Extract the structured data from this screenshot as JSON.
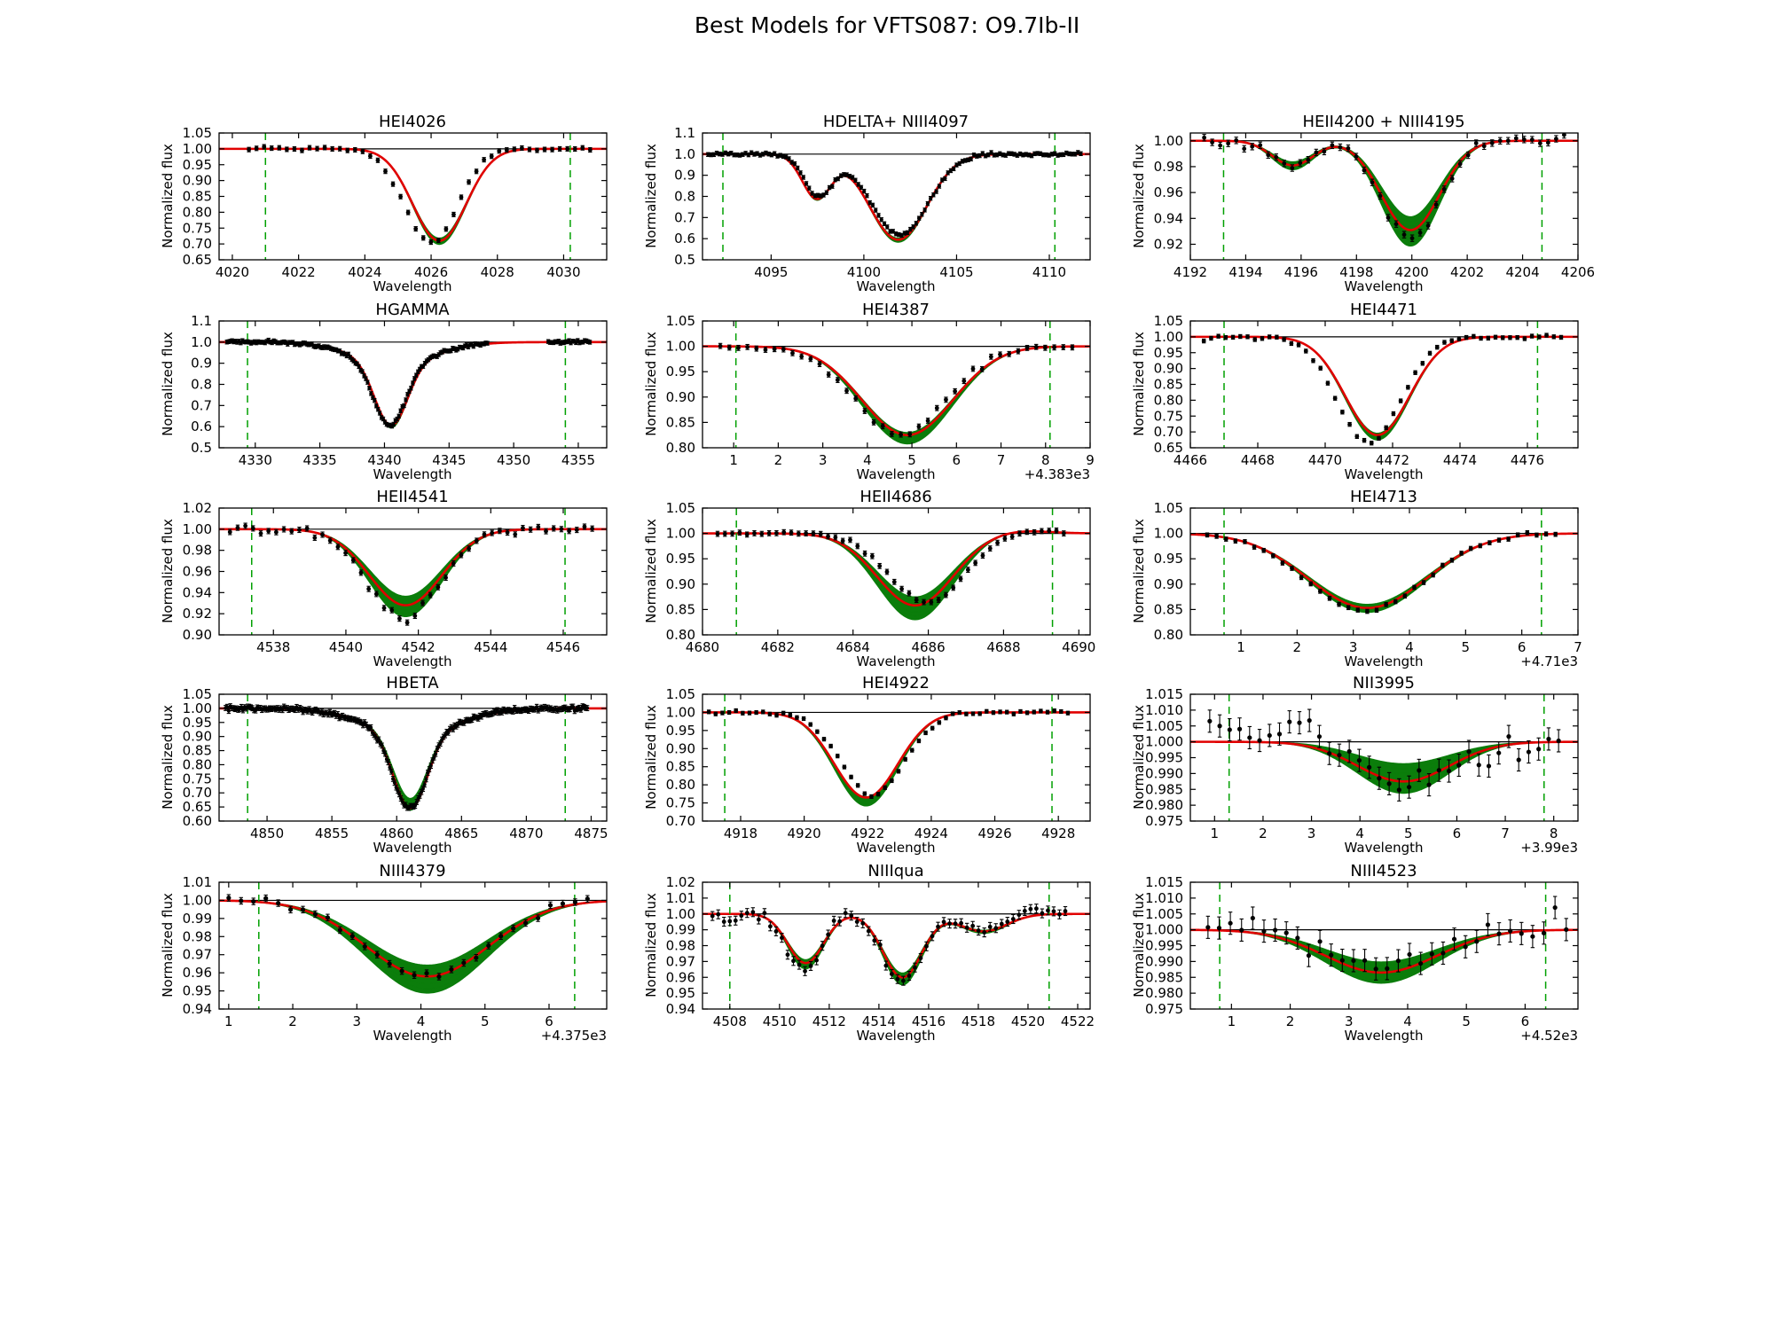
{
  "title": "Best Models for VFTS087: O9.7Ib-II",
  "style": {
    "background": "#ffffff",
    "data_black": "#000000",
    "model_green": "#0b7d0b",
    "best_fit_red": "#e10000",
    "fit_region_green": "#00a000",
    "continuum_black": "#000000"
  },
  "chart_data": [
    {
      "type": "line",
      "title": "HEI4026",
      "xlabel": "Wavelength",
      "ylabel": "Normalized flux",
      "xlim": [
        4019.6,
        4031.3
      ],
      "ylim": [
        0.65,
        1.05
      ],
      "xticks": [
        4020,
        4022,
        4024,
        4026,
        4028,
        4030
      ],
      "xtick_labels": [
        "4020",
        "4022",
        "4024",
        "4026",
        "4028",
        "4030"
      ],
      "yticks": [
        0.65,
        0.7,
        0.75,
        0.8,
        0.85,
        0.9,
        0.95,
        1.0,
        1.05
      ],
      "ytick_labels": [
        "0.65",
        "0.70",
        "0.75",
        "0.80",
        "0.85",
        "0.90",
        "0.95",
        "1.00",
        "1.05"
      ],
      "fit_region": [
        4021.0,
        4030.2
      ],
      "components": [
        {
          "c": 4026.25,
          "d": 0.29,
          "s": 0.8
        }
      ],
      "band_range": [
        0.97,
        1.04
      ],
      "data": {
        "range": [
          4020.5,
          4030.8
        ],
        "n": 46,
        "noise": 0.0035,
        "err": 0.007,
        "scale": 1.02,
        "shift": 0.25,
        "marker": 2.4
      }
    },
    {
      "type": "line",
      "title": "HDELTA+ NIII4097",
      "xlabel": "Wavelength",
      "ylabel": "Normalized flux",
      "xlim": [
        4091.3,
        4112.2
      ],
      "ylim": [
        0.5,
        1.1
      ],
      "xticks": [
        4095,
        4100,
        4105,
        4110
      ],
      "xtick_labels": [
        "4095",
        "4100",
        "4105",
        "4110"
      ],
      "yticks": [
        0.5,
        0.6,
        0.7,
        0.8,
        0.9,
        1.0,
        1.1
      ],
      "ytick_labels": [
        "0.5",
        "0.6",
        "0.7",
        "0.8",
        "0.9",
        "1.0",
        "1.1"
      ],
      "fit_region": [
        4092.4,
        4110.3
      ],
      "components": [
        {
          "c": 4097.45,
          "d": 0.205,
          "s": 0.78
        },
        {
          "c": 4101.85,
          "d": 0.405,
          "s": 1.55
        }
      ],
      "band_range": [
        0.98,
        1.03
      ],
      "data": {
        "range": [
          4091.6,
          4111.7
        ],
        "n": 130,
        "noise": 0.004,
        "err": 0.009,
        "scale": 0.94,
        "shift": -0.1,
        "marker": 2.1
      }
    },
    {
      "type": "line",
      "title": "HEII4200 + NIII4195",
      "xlabel": "Wavelength",
      "ylabel": "Normalized flux",
      "xlim": [
        4192.0,
        4206.0
      ],
      "ylim": [
        0.908,
        1.006
      ],
      "xticks": [
        4192,
        4194,
        4196,
        4198,
        4200,
        4202,
        4204,
        4206
      ],
      "xtick_labels": [
        "4192",
        "4194",
        "4196",
        "4198",
        "4200",
        "4202",
        "4204",
        "4206"
      ],
      "yticks": [
        0.92,
        0.94,
        0.96,
        0.98,
        1.0
      ],
      "ytick_labels": [
        "0.92",
        "0.94",
        "0.96",
        "0.98",
        "1.00"
      ],
      "fit_region": [
        4193.2,
        4204.7
      ],
      "components": [
        {
          "c": 4195.7,
          "d": 0.019,
          "s": 0.75
        },
        {
          "c": 4199.95,
          "d": 0.069,
          "s": 1.05
        }
      ],
      "band_range": [
        0.85,
        1.18
      ],
      "data": {
        "range": [
          4192.5,
          4205.5
        ],
        "n": 46,
        "noise": 0.002,
        "err": 0.0025,
        "scale": 1.1,
        "shift": 0,
        "marker": 2.4
      }
    },
    {
      "type": "line",
      "title": "HGAMMA",
      "xlabel": "Wavelength",
      "ylabel": "Normalized flux",
      "xlim": [
        4327.2,
        4357.2
      ],
      "ylim": [
        0.5,
        1.1
      ],
      "xticks": [
        4330,
        4335,
        4340,
        4345,
        4350,
        4355
      ],
      "xtick_labels": [
        "4330",
        "4335",
        "4340",
        "4345",
        "4350",
        "4355"
      ],
      "yticks": [
        0.5,
        0.6,
        0.7,
        0.8,
        0.9,
        1.0,
        1.1
      ],
      "ytick_labels": [
        "0.5",
        "0.6",
        "0.7",
        "0.8",
        "0.9",
        "1.0",
        "1.1"
      ],
      "fit_region": [
        4329.4,
        4354.0
      ],
      "components": [
        {
          "c": 4340.5,
          "d": 0.3,
          "s": 1.25
        },
        {
          "c": 4340.8,
          "d": 0.095,
          "s": 3.2
        }
      ],
      "band_range": [
        0.99,
        1.03
      ],
      "data": {
        "range": [
          4327.8,
          4355.9
        ],
        "n": 210,
        "noise": 0.004,
        "err": 0.009,
        "scale": 1.0,
        "shift": 0.1,
        "gaps": [
          [
            4348.1,
            4352.6
          ]
        ],
        "marker": 2.0
      }
    },
    {
      "type": "line",
      "title": "HEI4387",
      "xlabel": "Wavelength",
      "ylabel": "Normalized flux",
      "x_offset_label": "+4.383e3",
      "xlim": [
        4383.3,
        4392.0
      ],
      "ylim": [
        0.8,
        1.05
      ],
      "xticks": [
        4384,
        4385,
        4386,
        4387,
        4388,
        4389,
        4390,
        4391,
        4392
      ],
      "xtick_labels": [
        "1",
        "2",
        "3",
        "4",
        "5",
        "6",
        "7",
        "8",
        "9"
      ],
      "yticks": [
        0.8,
        0.85,
        0.9,
        0.95,
        1.0,
        1.05
      ],
      "ytick_labels": [
        "0.80",
        "0.85",
        "0.90",
        "0.95",
        "1.00",
        "1.05"
      ],
      "fit_region": [
        4384.05,
        4391.1
      ],
      "components": [
        {
          "c": 4387.9,
          "d": 0.175,
          "s": 1.02
        }
      ],
      "band_range": [
        0.97,
        1.1
      ],
      "data": {
        "range": [
          4383.7,
          4391.6
        ],
        "n": 40,
        "noise": 0.003,
        "err": 0.005,
        "scale": 1.0,
        "shift": 0.15,
        "marker": 2.4
      }
    },
    {
      "type": "line",
      "title": "HEI4471",
      "xlabel": "Wavelength",
      "ylabel": "Normalized flux",
      "xlim": [
        4466.0,
        4477.5
      ],
      "ylim": [
        0.65,
        1.05
      ],
      "xticks": [
        4466,
        4468,
        4470,
        4472,
        4474,
        4476
      ],
      "xtick_labels": [
        "4466",
        "4468",
        "4470",
        "4472",
        "4474",
        "4476"
      ],
      "yticks": [
        0.65,
        0.7,
        0.75,
        0.8,
        0.85,
        0.9,
        0.95,
        1.0,
        1.05
      ],
      "ytick_labels": [
        "0.65",
        "0.70",
        "0.75",
        "0.80",
        "0.85",
        "0.90",
        "0.95",
        "1.00",
        "1.05"
      ],
      "fit_region": [
        4467.0,
        4476.3
      ],
      "components": [
        {
          "c": 4471.55,
          "d": 0.31,
          "s": 0.95
        }
      ],
      "band_range": [
        0.98,
        1.05
      ],
      "data": {
        "range": [
          4466.4,
          4477.0
        ],
        "n": 50,
        "noise": 0.0035,
        "err": 0.006,
        "scale": 1.07,
        "shift": 0.25,
        "marker": 2.4
      }
    },
    {
      "type": "line",
      "title": "HEII4541",
      "xlabel": "Wavelength",
      "ylabel": "Normalized flux",
      "xlim": [
        4536.5,
        4547.2
      ],
      "ylim": [
        0.9,
        1.02
      ],
      "xticks": [
        4538,
        4540,
        4542,
        4544,
        4546
      ],
      "xtick_labels": [
        "4538",
        "4540",
        "4542",
        "4544",
        "4546"
      ],
      "yticks": [
        0.9,
        0.92,
        0.94,
        0.96,
        0.98,
        1.0,
        1.02
      ],
      "ytick_labels": [
        "0.90",
        "0.92",
        "0.94",
        "0.96",
        "0.98",
        "1.00",
        "1.02"
      ],
      "fit_region": [
        4537.4,
        4546.05
      ],
      "components": [
        {
          "c": 4541.65,
          "d": 0.072,
          "s": 1.0
        }
      ],
      "band_range": [
        0.88,
        1.15
      ],
      "data": {
        "range": [
          4536.8,
          4546.8
        ],
        "n": 48,
        "noise": 0.0022,
        "err": 0.0025,
        "scale": 1.18,
        "shift": 0.05,
        "marker": 2.4
      }
    },
    {
      "type": "line",
      "title": "HEII4686",
      "xlabel": "Wavelength",
      "ylabel": "Normalized flux",
      "xlim": [
        4680.0,
        4690.3
      ],
      "ylim": [
        0.8,
        1.05
      ],
      "xticks": [
        4680,
        4682,
        4684,
        4686,
        4688,
        4690
      ],
      "xtick_labels": [
        "4680",
        "4682",
        "4684",
        "4686",
        "4688",
        "4690"
      ],
      "yticks": [
        0.8,
        0.85,
        0.9,
        0.95,
        1.0,
        1.05
      ],
      "ytick_labels": [
        "0.80",
        "0.85",
        "0.90",
        "0.95",
        "1.00",
        "1.05"
      ],
      "fit_region": [
        4680.9,
        4689.3
      ],
      "components": [
        {
          "c": 4685.65,
          "d": 0.142,
          "s": 1.0
        }
      ],
      "emission": {
        "c": 4688.3,
        "d": 0.006,
        "s": 0.8
      },
      "band_range": [
        0.88,
        1.2
      ],
      "data": {
        "range": [
          4680.4,
          4689.6
        ],
        "n": 48,
        "noise": 0.0025,
        "err": 0.005,
        "scale": 0.95,
        "shift": -0.3,
        "marker": 2.4
      }
    },
    {
      "type": "line",
      "title": "HEI4713",
      "xlabel": "Wavelength",
      "ylabel": "Normalized flux",
      "x_offset_label": "+4.71e3",
      "xlim": [
        4710.1,
        4717.0
      ],
      "ylim": [
        0.8,
        1.05
      ],
      "xticks": [
        4711,
        4712,
        4713,
        4714,
        4715,
        4716,
        4717
      ],
      "xtick_labels": [
        "1",
        "2",
        "3",
        "4",
        "5",
        "6",
        "7"
      ],
      "yticks": [
        0.8,
        0.85,
        0.9,
        0.95,
        1.0,
        1.05
      ],
      "ytick_labels": [
        "0.80",
        "0.85",
        "0.90",
        "0.95",
        "1.00",
        "1.05"
      ],
      "fit_region": [
        4710.7,
        4716.35
      ],
      "components": [
        {
          "c": 4713.25,
          "d": 0.147,
          "s": 1.05
        }
      ],
      "band_range": [
        0.95,
        1.06
      ],
      "data": {
        "range": [
          4710.4,
          4716.6
        ],
        "n": 38,
        "noise": 0.0025,
        "err": 0.004,
        "scale": 1.05,
        "shift": 0.05,
        "marker": 2.4
      }
    },
    {
      "type": "line",
      "title": "HBETA",
      "xlabel": "Wavelength",
      "ylabel": "Normalized flux",
      "xlim": [
        4846.3,
        4876.2
      ],
      "ylim": [
        0.6,
        1.05
      ],
      "xticks": [
        4850,
        4855,
        4860,
        4865,
        4870,
        4875
      ],
      "xtick_labels": [
        "4850",
        "4855",
        "4860",
        "4865",
        "4870",
        "4875"
      ],
      "yticks": [
        0.6,
        0.65,
        0.7,
        0.75,
        0.8,
        0.85,
        0.9,
        0.95,
        1.0,
        1.05
      ],
      "ytick_labels": [
        "0.60",
        "0.65",
        "0.70",
        "0.75",
        "0.80",
        "0.85",
        "0.90",
        "0.95",
        "1.00",
        "1.05"
      ],
      "fit_region": [
        4848.5,
        4873.0
      ],
      "components": [
        {
          "c": 4861.05,
          "d": 0.27,
          "s": 1.3
        },
        {
          "c": 4861.2,
          "d": 0.085,
          "s": 3.6
        }
      ],
      "band_range": [
        0.9,
        1.02
      ],
      "data": {
        "range": [
          4846.8,
          4874.7
        ],
        "n": 230,
        "noise": 0.004,
        "err": 0.009,
        "scale": 1.0,
        "shift": 0.05,
        "marker": 2.0
      }
    },
    {
      "type": "line",
      "title": "HEI4922",
      "xlabel": "Wavelength",
      "ylabel": "Normalized flux",
      "xlim": [
        4916.8,
        4929.0
      ],
      "ylim": [
        0.7,
        1.05
      ],
      "xticks": [
        4918,
        4920,
        4922,
        4924,
        4926,
        4928
      ],
      "xtick_labels": [
        "4918",
        "4920",
        "4922",
        "4924",
        "4926",
        "4928"
      ],
      "yticks": [
        0.7,
        0.75,
        0.8,
        0.85,
        0.9,
        0.95,
        1.0,
        1.05
      ],
      "ytick_labels": [
        "0.70",
        "0.75",
        "0.80",
        "0.85",
        "0.90",
        "0.95",
        "1.00",
        "1.05"
      ],
      "fit_region": [
        4917.5,
        4927.8
      ],
      "components": [
        {
          "c": 4921.95,
          "d": 0.235,
          "s": 1.0
        }
      ],
      "band_range": [
        0.99,
        1.1
      ],
      "data": {
        "range": [
          4917.0,
          4928.3
        ],
        "n": 54,
        "noise": 0.0025,
        "err": 0.005,
        "scale": 0.97,
        "shift": -0.2,
        "marker": 2.4
      }
    },
    {
      "type": "line",
      "title": "NII3995",
      "xlabel": "Wavelength",
      "ylabel": "Normalized flux",
      "x_offset_label": "+3.99e3",
      "xlim": [
        3990.5,
        3998.5
      ],
      "ylim": [
        0.975,
        1.015
      ],
      "xticks": [
        3991,
        3992,
        3993,
        3994,
        3995,
        3996,
        3997,
        3998
      ],
      "xtick_labels": [
        "1",
        "2",
        "3",
        "4",
        "5",
        "6",
        "7",
        "8"
      ],
      "yticks": [
        0.975,
        0.98,
        0.985,
        0.99,
        0.995,
        1.0,
        1.005,
        1.01,
        1.015
      ],
      "ytick_labels": [
        "0.975",
        "0.980",
        "0.985",
        "0.990",
        "0.995",
        "1.000",
        "1.005",
        "1.010",
        "1.015"
      ],
      "fit_region": [
        3991.3,
        3997.8
      ],
      "components": [
        {
          "c": 3994.9,
          "d": 0.0125,
          "s": 0.95
        }
      ],
      "band_range": [
        0.55,
        1.3
      ],
      "data": {
        "range": [
          3990.9,
          3998.1
        ],
        "n": 36,
        "noise": 0.0028,
        "err": 0.0035,
        "scale": 1.15,
        "shift": 0,
        "offset": 0.0015,
        "slope": -0.0007,
        "marker": 2.6
      }
    },
    {
      "type": "line",
      "title": "NIII4379",
      "xlabel": "Wavelength",
      "ylabel": "Normalized flux",
      "x_offset_label": "+4.375e3",
      "xlim": [
        4375.85,
        4381.9
      ],
      "ylim": [
        0.94,
        1.01
      ],
      "xticks": [
        4376,
        4377,
        4378,
        4379,
        4380,
        4381
      ],
      "xtick_labels": [
        "1",
        "2",
        "3",
        "4",
        "5",
        "6"
      ],
      "yticks": [
        0.94,
        0.95,
        0.96,
        0.97,
        0.98,
        0.99,
        1.0,
        1.01
      ],
      "ytick_labels": [
        "0.94",
        "0.95",
        "0.96",
        "0.97",
        "0.98",
        "0.99",
        "1.00",
        "1.01"
      ],
      "fit_region": [
        4376.47,
        4381.4
      ],
      "components": [
        {
          "c": 4379.1,
          "d": 0.042,
          "s": 0.95
        }
      ],
      "band_range": [
        0.85,
        1.22
      ],
      "data": {
        "range": [
          4376.0,
          4381.6
        ],
        "n": 30,
        "noise": 0.0013,
        "err": 0.0018,
        "scale": 1.02,
        "shift": 0,
        "offset": 0.0005,
        "marker": 2.6
      }
    },
    {
      "type": "line",
      "title": "NIIIqua",
      "xlabel": "Wavelength",
      "ylabel": "Normalized flux",
      "xlim": [
        4506.9,
        4522.5
      ],
      "ylim": [
        0.94,
        1.02
      ],
      "xticks": [
        4508,
        4510,
        4512,
        4514,
        4516,
        4518,
        4520,
        4522
      ],
      "xtick_labels": [
        "4508",
        "4510",
        "4512",
        "4514",
        "4516",
        "4518",
        "4520",
        "4522"
      ],
      "yticks": [
        0.94,
        0.95,
        0.96,
        0.97,
        0.98,
        0.99,
        1.0,
        1.01,
        1.02
      ],
      "ytick_labels": [
        "0.94",
        "0.95",
        "0.96",
        "0.97",
        "0.98",
        "0.99",
        "1.00",
        "1.01",
        "1.02"
      ],
      "fit_region": [
        4508.0,
        4520.85
      ],
      "components": [
        {
          "c": 4511.05,
          "d": 0.031,
          "s": 0.72
        },
        {
          "c": 4514.95,
          "d": 0.04,
          "s": 0.78
        },
        {
          "c": 4518.2,
          "d": 0.011,
          "s": 0.95
        }
      ],
      "band_range": [
        0.93,
        1.12
      ],
      "data": {
        "range": [
          4507.3,
          4521.5
        ],
        "n": 62,
        "noise": 0.0018,
        "err": 0.0028,
        "scale": 1.1,
        "shift": 0.05,
        "offset": 0.0008,
        "slope": 0.0003,
        "marker": 2.4
      }
    },
    {
      "type": "line",
      "title": "NIII4523",
      "xlabel": "Wavelength",
      "ylabel": "Normalized flux",
      "x_offset_label": "+4.52e3",
      "xlim": [
        4520.3,
        4526.9
      ],
      "ylim": [
        0.975,
        1.015
      ],
      "xticks": [
        4521,
        4522,
        4523,
        4524,
        4525,
        4526
      ],
      "xtick_labels": [
        "1",
        "2",
        "3",
        "4",
        "5",
        "6"
      ],
      "yticks": [
        0.975,
        0.98,
        0.985,
        0.99,
        0.995,
        1.0,
        1.005,
        1.01,
        1.015
      ],
      "ytick_labels": [
        "0.975",
        "0.980",
        "0.985",
        "0.990",
        "0.995",
        "1.000",
        "1.005",
        "1.010",
        "1.015"
      ],
      "fit_region": [
        4520.8,
        4526.35
      ],
      "components": [
        {
          "c": 4523.55,
          "d": 0.0135,
          "s": 0.95
        }
      ],
      "band_range": [
        0.75,
        1.25
      ],
      "data": {
        "range": [
          4520.6,
          4526.7
        ],
        "n": 33,
        "noise": 0.0028,
        "err": 0.0035,
        "scale": 1.1,
        "shift": 0,
        "offset": 0.002,
        "marker": 2.6
      }
    }
  ]
}
